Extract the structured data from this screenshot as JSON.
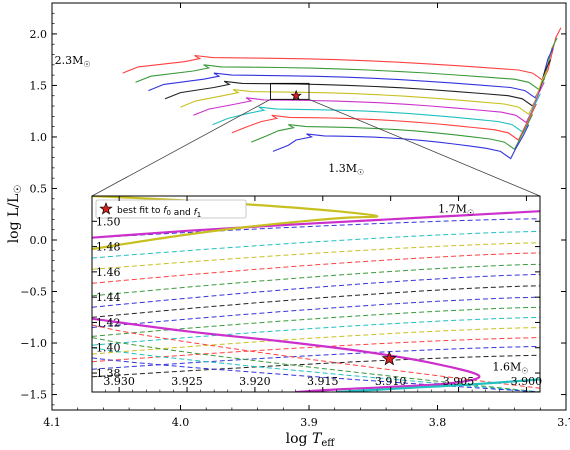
{
  "chart_data": [
    {
      "type": "line",
      "role": "main-hr-diagram",
      "xlabel": "log T_eff",
      "ylabel": "log L/L_sun",
      "xlim": [
        4.1,
        3.7
      ],
      "ylim": [
        -1.65,
        2.3
      ],
      "x_ticks": [
        {
          "v": 4.1,
          "label": "4.1"
        },
        {
          "v": 4.0,
          "label": "4.0"
        },
        {
          "v": 3.9,
          "label": "3.9"
        },
        {
          "v": 3.8,
          "label": "3.8"
        },
        {
          "v": 3.7,
          "label": "3.7"
        }
      ],
      "y_ticks": [
        {
          "v": 2.0,
          "label": "2.0"
        },
        {
          "v": 1.5,
          "label": "1.5"
        },
        {
          "v": 1.0,
          "label": "1.0"
        },
        {
          "v": 0.5,
          "label": "0.5"
        },
        {
          "v": 0.0,
          "label": "0.0"
        },
        {
          "v": -0.5,
          "label": "−0.5"
        },
        {
          "v": -1.0,
          "label": "−1.0"
        },
        {
          "v": -1.5,
          "label": "−1.5"
        }
      ],
      "annotations": [
        {
          "text": "2.3M☉",
          "x": 4.07,
          "y": 1.71
        },
        {
          "text": "1.3M☉",
          "x": 3.885,
          "y": 0.66
        }
      ],
      "marker": {
        "label": "best fit to f0 and f1",
        "x": 3.91,
        "y": 1.4,
        "color": "#d62020"
      },
      "zoom_box": {
        "x": [
          3.93,
          3.9
        ],
        "y": [
          1.365,
          1.52
        ]
      },
      "series": [
        {
          "color": "#ff4040",
          "y_ms": 1.7,
          "y_base": 2.06,
          "x_base": 3.722,
          "x_start": 4.045,
          "x_hook": 3.985
        },
        {
          "color": "#3a9a3a",
          "y_ms": 1.61,
          "y_base": 1.96,
          "x_base": 3.725,
          "x_start": 4.035,
          "x_hook": 3.978
        },
        {
          "color": "#3333dd",
          "y_ms": 1.53,
          "y_base": 1.86,
          "x_base": 3.728,
          "x_start": 4.025,
          "x_hook": 3.97
        },
        {
          "color": "#222222",
          "y_ms": 1.45,
          "y_base": 1.75,
          "x_base": 3.73,
          "x_start": 4.012,
          "x_hook": 3.962
        },
        {
          "color": "#c8c020",
          "y_ms": 1.37,
          "y_base": 1.64,
          "x_base": 3.733,
          "x_start": 4.0,
          "x_hook": 3.955
        },
        {
          "color": "#cc30cc",
          "y_ms": 1.29,
          "y_base": 1.53,
          "x_base": 3.735,
          "x_start": 3.99,
          "x_hook": 3.945
        },
        {
          "color": "#20c0c0",
          "y_ms": 1.2,
          "y_base": 1.42,
          "x_base": 3.738,
          "x_start": 3.975,
          "x_hook": 3.935
        },
        {
          "color": "#ff4040",
          "y_ms": 1.12,
          "y_base": 1.32,
          "x_base": 3.741,
          "x_start": 3.96,
          "x_hook": 3.925
        },
        {
          "color": "#3a9a3a",
          "y_ms": 1.03,
          "y_base": 1.22,
          "x_base": 3.744,
          "x_start": 3.945,
          "x_hook": 3.912
        },
        {
          "color": "#3333dd",
          "y_ms": 0.94,
          "y_base": 1.12,
          "x_base": 3.747,
          "x_start": 3.928,
          "x_hook": 3.898
        }
      ]
    },
    {
      "type": "line",
      "role": "zoom-inset",
      "xlim": [
        3.932,
        3.899
      ],
      "ylim": [
        1.365,
        1.52
      ],
      "x_ticks": [
        {
          "v": 3.93,
          "label": "3.930"
        },
        {
          "v": 3.925,
          "label": "3.925"
        },
        {
          "v": 3.92,
          "label": "3.920"
        },
        {
          "v": 3.915,
          "label": "3.915"
        },
        {
          "v": 3.91,
          "label": "3.910"
        },
        {
          "v": 3.905,
          "label": "3.905"
        },
        {
          "v": 3.9,
          "label": "3.900"
        }
      ],
      "y_ticks": [
        {
          "v": 1.5,
          "label": "1.50"
        },
        {
          "v": 1.48,
          "label": "1.48"
        },
        {
          "v": 1.46,
          "label": "1.46"
        },
        {
          "v": 1.44,
          "label": "1.44"
        },
        {
          "v": 1.42,
          "label": "1.42"
        },
        {
          "v": 1.4,
          "label": "1.40"
        },
        {
          "v": 1.38,
          "label": "1.38"
        }
      ],
      "legend": {
        "label": "best fit to f0 and f1",
        "placement": "top-left"
      },
      "annotations": [
        {
          "text": "1.7M☉",
          "x": 3.9065,
          "y": 1.507
        },
        {
          "text": "1.6M☉",
          "x": 3.9025,
          "y": 1.382
        }
      ],
      "marker": {
        "x": 3.9101,
        "y": 1.3912,
        "color": "#d62020"
      },
      "solid_tracks": [
        {
          "color": "#cc30cc",
          "points": [
            [
              3.932,
              1.487
            ],
            [
              3.925,
              1.4925
            ],
            [
              3.918,
              1.497
            ],
            [
              3.911,
              1.501
            ],
            [
              3.905,
              1.5045
            ],
            [
              3.899,
              1.508
            ]
          ]
        },
        {
          "color": "#c8c020",
          "points": [
            [
              3.932,
              1.478
            ],
            [
              3.926,
              1.488
            ],
            [
              3.921,
              1.495
            ],
            [
              3.916,
              1.5005
            ],
            [
              3.913,
              1.503
            ],
            [
              3.911,
              1.504
            ],
            [
              3.914,
              1.508
            ],
            [
              3.92,
              1.513
            ],
            [
              3.926,
              1.517
            ],
            [
              3.932,
              1.52
            ]
          ]
        },
        {
          "color": "#cc30cc",
          "points": [
            [
              3.932,
              1.423
            ],
            [
              3.925,
              1.413
            ],
            [
              3.918,
              1.405
            ],
            [
              3.912,
              1.397
            ],
            [
              3.907,
              1.388
            ],
            [
              3.9035,
              1.378
            ],
            [
              3.9055,
              1.372
            ],
            [
              3.91,
              1.369
            ],
            [
              3.914,
              1.367
            ],
            [
              3.917,
              1.365
            ]
          ]
        },
        {
          "color": "#20c0c0",
          "points": [
            [
              3.914,
              1.365
            ],
            [
              3.909,
              1.368
            ],
            [
              3.904,
              1.371
            ],
            [
              3.899,
              1.375
            ]
          ]
        }
      ],
      "dashed_tracks": [
        {
          "color": "#3333dd",
          "y_left": 1.487,
          "y_right": 1.502
        },
        {
          "color": "#20c0c0",
          "y_left": 1.471,
          "y_right": 1.492
        },
        {
          "color": "#c8c020",
          "y_left": 1.462,
          "y_right": 1.483
        },
        {
          "color": "#ff4040",
          "y_left": 1.451,
          "y_right": 1.475
        },
        {
          "color": "#3a9a3a",
          "y_left": 1.441,
          "y_right": 1.466
        },
        {
          "color": "#3333dd",
          "y_left": 1.432,
          "y_right": 1.458
        },
        {
          "color": "#222222",
          "y_left": 1.424,
          "y_right": 1.449
        },
        {
          "color": "#3333dd",
          "y_left": 1.416,
          "y_right": 1.44
        },
        {
          "color": "#3a9a3a",
          "y_left": 1.409,
          "y_right": 1.432
        },
        {
          "color": "#20c0c0",
          "y_left": 1.402,
          "y_right": 1.424
        },
        {
          "color": "#c8c020",
          "y_left": 1.395,
          "y_right": 1.416
        },
        {
          "color": "#ff4040",
          "y_left": 1.389,
          "y_right": 1.408
        },
        {
          "color": "#3333dd",
          "y_left": 1.383,
          "y_right": 1.401
        },
        {
          "color": "#222222",
          "y_left": 1.377,
          "y_right": 1.394
        }
      ],
      "dashed_descending": [
        {
          "color": "#ff4040",
          "y_left": 1.418,
          "y_right": 1.368
        },
        {
          "color": "#3a9a3a",
          "y_left": 1.408,
          "y_right": 1.365
        },
        {
          "color": "#20c0c0",
          "y_left": 1.4,
          "y_right": 1.365
        },
        {
          "color": "#3333dd",
          "y_left": 1.392,
          "y_right": 1.365
        }
      ]
    }
  ]
}
